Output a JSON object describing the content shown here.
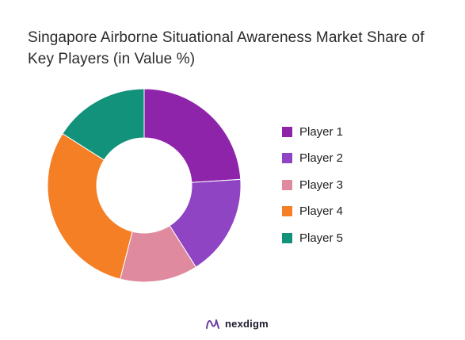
{
  "chart_data": {
    "type": "pie",
    "variant": "donut",
    "title": "Singapore Airborne Situational Awareness Market Share of Key Players (in Value %)",
    "categories": [
      "Player 1",
      "Player 2",
      "Player 3",
      "Player 4",
      "Player 5"
    ],
    "values": [
      24,
      17,
      13,
      30,
      16
    ],
    "colors": [
      "#8E24AA",
      "#8E44C3",
      "#E08AA0",
      "#F57F25",
      "#12917B"
    ],
    "legend_position": "right"
  },
  "brand": {
    "name": "nexdigm"
  }
}
